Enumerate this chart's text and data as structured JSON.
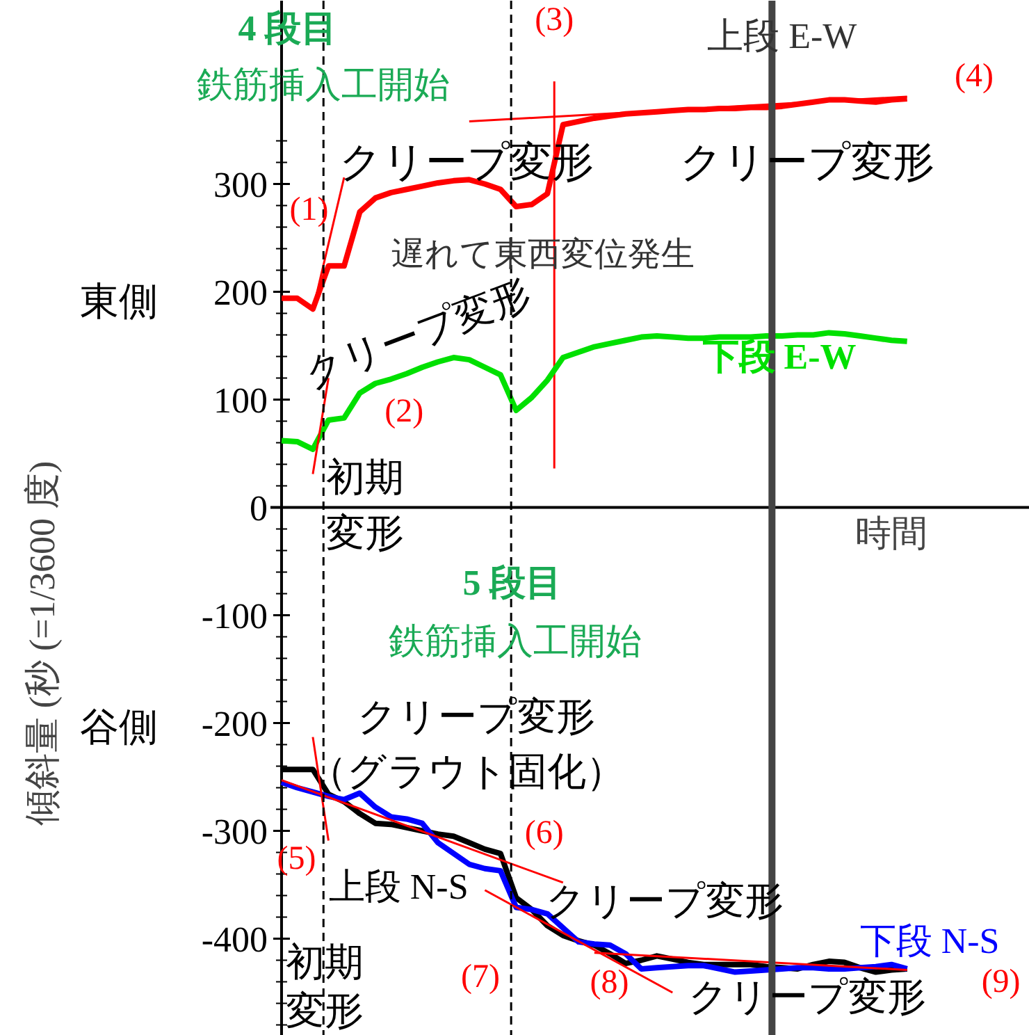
{
  "chart_data": {
    "type": "line",
    "xlabel": "時間",
    "ylabel": "傾斜量 (秒 (=1/3600 度)",
    "categories": [
      null,
      null,
      null,
      null,
      null,
      null,
      null,
      null,
      null,
      null,
      null,
      null,
      null,
      null,
      null,
      null,
      null,
      null,
      null,
      null,
      null,
      null,
      null,
      null,
      null,
      null,
      null,
      null,
      null,
      null,
      null,
      null,
      null,
      null,
      null,
      null,
      null,
      null,
      null,
      null,
      null
    ],
    "ylim": [
      -490,
      470
    ],
    "yticks": [
      -400,
      -300,
      -200,
      -100,
      0,
      100,
      200,
      300,
      {
        "value": -480,
        "label": null
      },
      {
        "value": -460,
        "label": null
      },
      {
        "value": -440,
        "label": null
      },
      {
        "value": -420,
        "label": null
      },
      {
        "value": -380,
        "label": null
      },
      {
        "value": -360,
        "label": null
      },
      {
        "value": -340,
        "label": null
      },
      {
        "value": -320,
        "label": null
      },
      {
        "value": -280,
        "label": null
      },
      {
        "value": -260,
        "label": null
      },
      {
        "value": -240,
        "label": null
      },
      {
        "value": -220,
        "label": null
      },
      {
        "value": -180,
        "label": null
      },
      {
        "value": -160,
        "label": null
      },
      {
        "value": -140,
        "label": null
      },
      {
        "value": -120,
        "label": null
      },
      {
        "value": -80,
        "label": null
      },
      {
        "value": -60,
        "label": null
      },
      {
        "value": -40,
        "label": null
      },
      {
        "value": -20,
        "label": null
      },
      {
        "value": 20,
        "label": null
      },
      {
        "value": 40,
        "label": null
      },
      {
        "value": 60,
        "label": null
      },
      {
        "value": 80,
        "label": null
      },
      {
        "value": 120,
        "label": null
      },
      {
        "value": 140,
        "label": null
      },
      {
        "value": 160,
        "label": null
      },
      {
        "value": 180,
        "label": null
      },
      {
        "value": 220,
        "label": null
      },
      {
        "value": 240,
        "label": null
      },
      {
        "value": 260,
        "label": null
      },
      {
        "value": 280,
        "label": null
      },
      {
        "value": 320,
        "label": null
      },
      {
        "value": 340,
        "label": null
      }
    ],
    "tick_labels": "y",
    "grid": false,
    "legend": false,
    "marker": "none",
    "line_style": "solid",
    "series": [
      {
        "name": "上段 E-W",
        "color": "#ff0000",
        "values": [
          194,
          194,
          184,
          224,
          224,
          274,
          287,
          292,
          295,
          298,
          301,
          303,
          304,
          300,
          295,
          279,
          281,
          291,
          355,
          358,
          361,
          363,
          365,
          366,
          367,
          368,
          369,
          369,
          370,
          370,
          371,
          371,
          372,
          374,
          376,
          378,
          378,
          377,
          376,
          378,
          379
        ]
      },
      {
        "name": "下段 E-W",
        "color": "#00e000",
        "values": [
          62,
          61,
          54,
          81,
          83,
          106,
          115,
          119,
          124,
          130,
          135,
          139,
          137,
          130,
          123,
          90,
          102,
          118,
          139,
          144,
          149,
          152,
          155,
          158,
          159,
          158,
          157,
          157,
          158,
          158,
          158,
          159,
          159,
          160,
          160,
          162,
          161,
          159,
          157,
          155,
          154
        ]
      },
      {
        "name": "上段 N-S",
        "color": "#000000",
        "values": [
          -243,
          -243,
          -243,
          -266,
          -273,
          -284,
          -293,
          -294,
          -297,
          -300,
          -303,
          -305,
          -311,
          -317,
          -321,
          -362,
          -373,
          -388,
          -397,
          -402,
          -406,
          -414,
          -423,
          -420,
          -416,
          -419,
          -422,
          -424,
          -424,
          -424,
          -424,
          -426,
          -427,
          -428,
          -424,
          -421,
          -422,
          -427,
          -431,
          -429,
          -428
        ]
      },
      {
        "name": "下段 N-S",
        "color": "#0000ff",
        "values": [
          -255,
          -260,
          -264,
          -268,
          -271,
          -265,
          -278,
          -287,
          -289,
          -293,
          -311,
          -321,
          -331,
          -335,
          -337,
          -371,
          -373,
          -377,
          -390,
          -403,
          -405,
          -406,
          -414,
          -428,
          -427,
          -426,
          -425,
          -425,
          -428,
          -431,
          -430,
          -429,
          -428,
          -427,
          -427,
          -428,
          -428,
          -427,
          -426,
          -424,
          -428
        ]
      },
      {
        "type": "line",
        "color": "#ff0000",
        "values": [
          null,
          null,
          183,
          null,
          306,
          null,
          null,
          null,
          null,
          null,
          null,
          null,
          null,
          null,
          null,
          null,
          null,
          null,
          null,
          null,
          null,
          null,
          null,
          null,
          null,
          null,
          null,
          null,
          null,
          null,
          null,
          null,
          null,
          null,
          null,
          null,
          null,
          null,
          null,
          null,
          null
        ]
      },
      {
        "type": "line",
        "color": "#ff0000",
        "values": [
          null,
          null,
          31,
          120,
          null,
          null,
          null,
          null,
          null,
          null,
          null,
          null,
          null,
          null,
          null,
          null,
          null,
          null,
          null,
          null,
          null,
          null,
          null,
          null,
          null,
          null,
          null,
          null,
          null,
          null,
          null,
          null,
          null,
          null,
          null,
          null,
          null,
          null,
          null,
          null,
          null
        ]
      },
      {
        "type": "line",
        "color": "#ff0000",
        "values": [
          null,
          null,
          null,
          null,
          null,
          null,
          null,
          null,
          null,
          null,
          null,
          null,
          358,
          null,
          null,
          null,
          null,
          null,
          null,
          null,
          null,
          null,
          null,
          null,
          null,
          null,
          null,
          null,
          null,
          null,
          null,
          null,
          null,
          null,
          null,
          null,
          null,
          null,
          null,
          null,
          381
        ]
      },
      {
        "type": "line",
        "color": "#ff0000",
        "values": [
          null,
          null,
          -213,
          -309,
          null,
          null,
          null,
          null,
          null,
          null,
          null,
          null,
          null,
          null,
          null,
          null,
          null,
          null,
          null,
          null,
          null,
          null,
          null,
          null,
          null,
          null,
          null,
          null,
          null,
          null,
          null,
          null,
          null,
          null,
          null,
          null,
          null,
          null,
          null,
          null,
          null
        ]
      },
      {
        "type": "line",
        "color": "#ff0000",
        "values": [
          -253,
          null,
          null,
          null,
          null,
          null,
          null,
          null,
          null,
          null,
          null,
          null,
          null,
          null,
          null,
          null,
          null,
          null,
          -348,
          null,
          null,
          null,
          null,
          null,
          null,
          null,
          null,
          null,
          null,
          null,
          null,
          null,
          null,
          null,
          null,
          null,
          null,
          null,
          null,
          null,
          null
        ]
      },
      {
        "type": "line",
        "color": "#ff0000",
        "values": [
          null,
          null,
          null,
          null,
          null,
          null,
          null,
          null,
          null,
          null,
          null,
          null,
          null,
          -355,
          null,
          null,
          null,
          null,
          null,
          null,
          null,
          null,
          null,
          null,
          null,
          -450,
          null,
          null,
          null,
          null,
          null,
          null,
          null,
          null,
          null,
          null,
          null,
          null,
          null,
          null,
          null
        ]
      },
      {
        "type": "line",
        "color": "#ff0000",
        "values": [
          null,
          null,
          null,
          null,
          null,
          null,
          null,
          null,
          null,
          null,
          null,
          null,
          null,
          null,
          null,
          null,
          null,
          null,
          null,
          null,
          -413,
          null,
          null,
          null,
          null,
          null,
          null,
          null,
          null,
          null,
          null,
          null,
          null,
          null,
          null,
          null,
          null,
          null,
          null,
          null,
          -429
        ]
      }
    ],
    "ref_lines": [
      {
        "axis": "y",
        "value": 0,
        "color": "#000000",
        "line_style": "solid"
      }
    ],
    "annotations": [
      "4 段目",
      "鉄筋挿入工開始",
      "5 段目",
      "鉄筋挿入工開始",
      "(1)",
      "(2)",
      "(3)",
      "(4)",
      "(5)",
      "(6)",
      "(7)",
      "(8)",
      "(9)",
      "クリープ変形",
      "クリープ変形",
      "遅れて東西変位発生",
      "クリープ変形",
      "初期",
      "変形",
      "クリープ変形",
      "（グラウト固化）",
      "クリープ変形",
      "初期",
      "変形",
      "クリープ変形",
      "東側",
      "谷側"
    ]
  }
}
